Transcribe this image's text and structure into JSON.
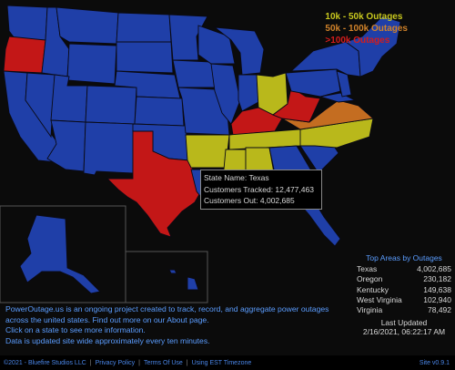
{
  "legend": [
    {
      "label": "10k - 50k Outages",
      "color": "#c8c81e"
    },
    {
      "label": "50k - 100k Outages",
      "color": "#d0822a"
    },
    {
      "label": ">100k Outages",
      "color": "#d41c1c"
    }
  ],
  "tooltip": {
    "state_name": "State Name: Texas",
    "customers_tracked": "Customers Tracked: 12,477,463",
    "customers_out": "Customers Out: 4,002,685"
  },
  "info": {
    "line1": "PowerOutage.us is an ongoing project created to track, record, and aggregate power outages",
    "line2": "across the united states. Find out more on our About page.",
    "line3": "Click on a state to see more information.",
    "line4": "Data is updated site wide approximately every ten minutes."
  },
  "top_areas": {
    "title": "Top Areas by Outages",
    "rows": [
      {
        "name": "Texas",
        "value": "4,002,685"
      },
      {
        "name": "Oregon",
        "value": "230,182"
      },
      {
        "name": "Kentucky",
        "value": "149,638"
      },
      {
        "name": "West Virginia",
        "value": "102,940"
      },
      {
        "name": "Virginia",
        "value": "78,492"
      }
    ],
    "last_updated_label": "Last Updated",
    "last_updated_value": "2/16/2021, 06:22:17 AM"
  },
  "footer": {
    "copyright": "©2021 - Bluefire Studios LLC",
    "privacy": "Privacy Policy",
    "terms": "Terms Of Use",
    "timezone": "Using EST Timezone",
    "version": "Site v0.9.1"
  },
  "colors": {
    "no_outage": "#1f3fa8",
    "tier1": "#b9b81b",
    "tier2": "#c46d21",
    "tier3": "#c31717"
  }
}
